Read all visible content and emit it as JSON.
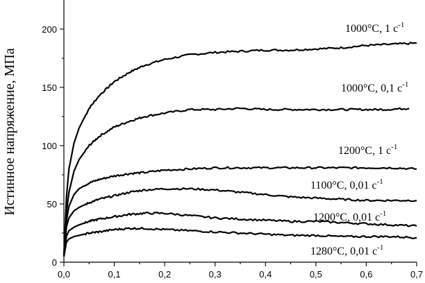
{
  "chart_data": {
    "type": "line",
    "ylabel": "Истинное напряжение, МПа",
    "xlabel": "",
    "xlim": [
      0.0,
      0.7
    ],
    "ylim": [
      0,
      225
    ],
    "x_ticks": [
      "0,0",
      "0,1",
      "0,2",
      "0,3",
      "0,4",
      "0,5",
      "0,6",
      "0,7"
    ],
    "y_ticks": [
      "0",
      "50",
      "100",
      "150",
      "200"
    ],
    "x_tick_values": [
      0.0,
      0.1,
      0.2,
      0.3,
      0.4,
      0.5,
      0.6,
      0.7
    ],
    "y_tick_values": [
      0,
      50,
      100,
      150,
      200
    ],
    "grid": false,
    "series": [
      {
        "name": "1000°C, 1 с-1",
        "label_main": "1000°C, 1 с",
        "label_sup": "-1",
        "x": [
          0.0,
          0.005,
          0.01,
          0.02,
          0.03,
          0.05,
          0.07,
          0.1,
          0.13,
          0.16,
          0.2,
          0.25,
          0.3,
          0.35,
          0.4,
          0.45,
          0.5,
          0.55,
          0.6,
          0.65,
          0.7
        ],
        "y": [
          5,
          55,
          80,
          102,
          115,
          132,
          143,
          155,
          163,
          169,
          174,
          178,
          180,
          181,
          182,
          182,
          183,
          184,
          186,
          187,
          188
        ]
      },
      {
        "name": "1000°C, 0,1 с-1",
        "label_main": "1000°C, 0,1 с",
        "label_sup": "-1",
        "x": [
          0.0,
          0.005,
          0.01,
          0.02,
          0.03,
          0.05,
          0.07,
          0.1,
          0.13,
          0.16,
          0.2,
          0.25,
          0.3,
          0.35,
          0.4,
          0.45,
          0.5,
          0.55,
          0.6,
          0.64,
          0.685
        ],
        "y": [
          5,
          42,
          60,
          78,
          88,
          100,
          108,
          116,
          121,
          125,
          128,
          131,
          131,
          132,
          131,
          131,
          131,
          131,
          131,
          131,
          132
        ]
      },
      {
        "name": "1200°C, 1 с-1",
        "label_main": "1200°C, 1 с",
        "label_sup": "-1",
        "x": [
          0.0,
          0.005,
          0.01,
          0.02,
          0.03,
          0.05,
          0.07,
          0.1,
          0.13,
          0.16,
          0.2,
          0.25,
          0.3,
          0.35,
          0.4,
          0.45,
          0.5,
          0.55,
          0.6,
          0.65,
          0.7
        ],
        "y": [
          5,
          35,
          48,
          58,
          63,
          68,
          71,
          74,
          76,
          77,
          79,
          80,
          81,
          81,
          81,
          81,
          81,
          81,
          81,
          81,
          80
        ]
      },
      {
        "name": "1100°C, 0,01 с-1",
        "label_main": "1100°C, 0,01 с",
        "label_sup": "-1",
        "x": [
          0.0,
          0.005,
          0.01,
          0.02,
          0.03,
          0.05,
          0.07,
          0.1,
          0.13,
          0.16,
          0.2,
          0.25,
          0.3,
          0.35,
          0.4,
          0.45,
          0.5,
          0.55,
          0.6,
          0.65,
          0.7
        ],
        "y": [
          5,
          30,
          38,
          44,
          47,
          51,
          54,
          57,
          60,
          62,
          63,
          63,
          62,
          60,
          58,
          56,
          55,
          54,
          53,
          53,
          53
        ]
      },
      {
        "name": "1200°C, 0,01 с-1",
        "label_main": "1200°C, 0,01 с",
        "label_sup": "-1",
        "x": [
          0.0,
          0.005,
          0.01,
          0.02,
          0.03,
          0.05,
          0.07,
          0.1,
          0.13,
          0.16,
          0.2,
          0.25,
          0.3,
          0.35,
          0.4,
          0.45,
          0.5,
          0.55,
          0.6,
          0.65,
          0.7
        ],
        "y": [
          5,
          22,
          27,
          30,
          32,
          35,
          37,
          39,
          41,
          42,
          42,
          40,
          38,
          37,
          36,
          35,
          35,
          34,
          33,
          32,
          31
        ]
      },
      {
        "name": "1280°C, 0,01 с-1",
        "label_main": "1280°C, 0,01 с",
        "label_sup": "-1",
        "x": [
          0.0,
          0.005,
          0.01,
          0.02,
          0.03,
          0.05,
          0.07,
          0.1,
          0.13,
          0.16,
          0.2,
          0.25,
          0.3,
          0.35,
          0.4,
          0.45,
          0.5,
          0.55,
          0.6,
          0.65,
          0.7
        ],
        "y": [
          5,
          17,
          20,
          22,
          23,
          25,
          26,
          28,
          29,
          29,
          28,
          27,
          26,
          25,
          24,
          23,
          23,
          22,
          22,
          22,
          21
        ]
      }
    ]
  }
}
